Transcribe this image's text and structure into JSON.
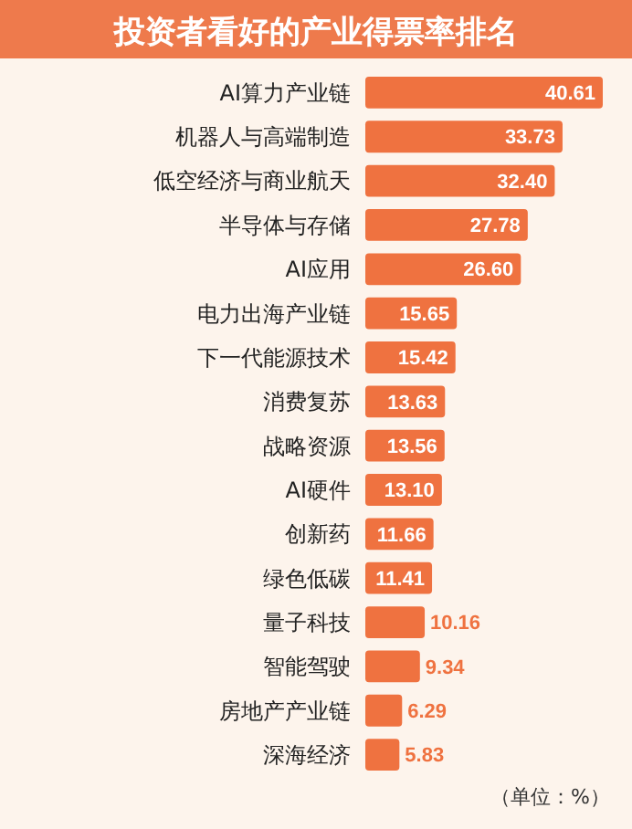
{
  "chart_data": {
    "type": "bar",
    "orientation": "horizontal",
    "title": "投资者看好的产业得票率排名",
    "annotations": [
      "（单位：%）"
    ],
    "categories": [
      "AI算力产业链",
      "机器人与高端制造",
      "低空经济与商业航天",
      "半导体与存储",
      "AI应用",
      "电力出海产业链",
      "下一代能源技术",
      "消费复苏",
      "战略资源",
      "AI硬件",
      "创新药",
      "绿色低碳",
      "量子科技",
      "智能驾驶",
      "房地产产业链",
      "深海经济"
    ],
    "values": [
      40.61,
      33.73,
      32.4,
      27.78,
      26.6,
      15.65,
      15.42,
      13.63,
      13.56,
      13.1,
      11.66,
      11.41,
      10.16,
      9.34,
      6.29,
      5.83
    ],
    "value_labels": [
      "40.61",
      "33.73",
      "32.40",
      "27.78",
      "26.60",
      "15.65",
      "15.42",
      "13.63",
      "13.56",
      "13.10",
      "11.66",
      "11.41",
      "10.16",
      "9.34",
      "6.29",
      "5.83"
    ],
    "color": "#ef7240"
  }
}
